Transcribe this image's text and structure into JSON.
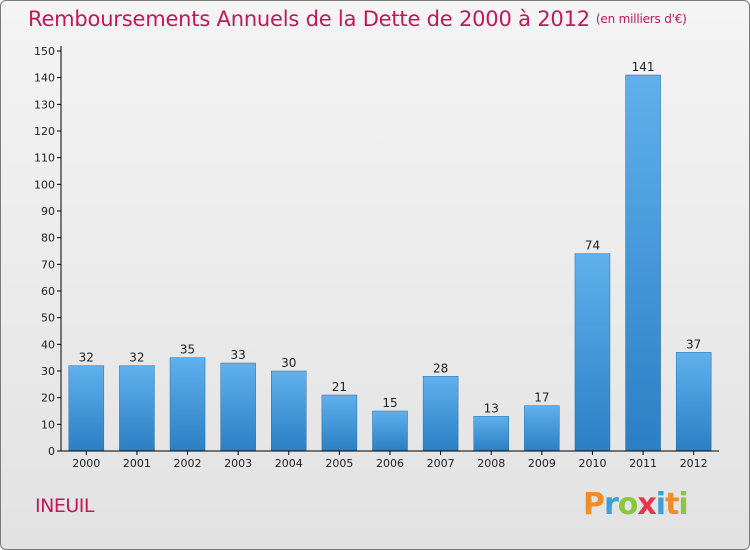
{
  "header": {
    "title": "Remboursements Annuels de la Dette de 2000 à 2012",
    "subtitle": "(en milliers d'€)"
  },
  "footer": {
    "commune": "INEUIL",
    "logo_text": "Proxiti"
  },
  "colors": {
    "title": "#c2185b",
    "bar_light": "#5fb0ec",
    "bar_dark": "#2b7fc3",
    "axis": "#000000"
  },
  "chart_data": {
    "type": "bar",
    "title": "Remboursements Annuels de la Dette de 2000 à 2012",
    "xlabel": "",
    "ylabel": "",
    "ylim": [
      0,
      150
    ],
    "yticks": [
      0,
      10,
      20,
      30,
      40,
      50,
      60,
      70,
      80,
      90,
      100,
      110,
      120,
      130,
      140,
      150
    ],
    "categories": [
      "2000",
      "2001",
      "2002",
      "2003",
      "2004",
      "2005",
      "2006",
      "2007",
      "2008",
      "2009",
      "2010",
      "2011",
      "2012"
    ],
    "values": [
      32,
      32,
      35,
      33,
      30,
      21,
      15,
      28,
      13,
      17,
      74,
      141,
      37
    ],
    "grid": false,
    "legend": "none"
  }
}
